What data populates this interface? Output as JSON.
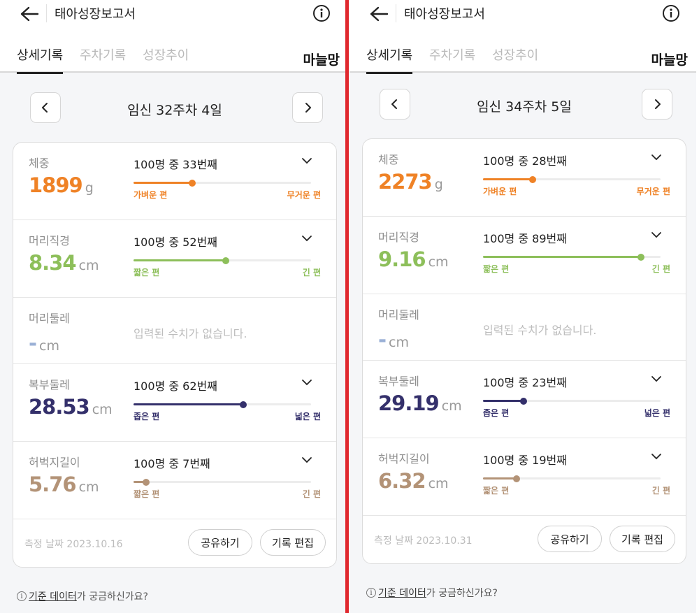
{
  "panels": [
    {
      "title": "태아성장보고서",
      "tabs": [
        "상세기록",
        "주차기록",
        "성장추이"
      ],
      "user_name": "마늘망",
      "week_label": "임신 32주차 4일",
      "rows": [
        {
          "label": "체중",
          "value": "1899",
          "unit": "g",
          "rank": "100명 중 33번째",
          "percentile": 33,
          "low_label": "가벼운 편",
          "high_label": "무거운 편",
          "color": "#ef8226"
        },
        {
          "label": "머리직경",
          "value": "8.34",
          "unit": "cm",
          "rank": "100명 중 52번째",
          "percentile": 52,
          "low_label": "짧은 편",
          "high_label": "긴 편",
          "color": "#8dbf5a"
        },
        {
          "label": "머리둘레",
          "value": "-",
          "unit": "cm",
          "empty_text": "입력된 수치가 없습니다."
        },
        {
          "label": "복부둘레",
          "value": "28.53",
          "unit": "cm",
          "rank": "100명 중 62번째",
          "percentile": 62,
          "low_label": "좁은 편",
          "high_label": "넓은 편",
          "color": "#34306b"
        },
        {
          "label": "허벅지길이",
          "value": "5.76",
          "unit": "cm",
          "rank": "100명 중 7번째",
          "percentile": 7,
          "low_label": "짧은 편",
          "high_label": "긴 편",
          "color": "#b39377"
        }
      ],
      "date": "측정 날짜 2023.10.16",
      "share_label": "공유하기",
      "edit_label": "기록 편집",
      "help_link": "기준 데이터",
      "help_rest": "가 궁금하신가요?"
    },
    {
      "title": "태아성장보고서",
      "tabs": [
        "상세기록",
        "주차기록",
        "성장추이"
      ],
      "user_name": "마늘망",
      "week_label": "임신 34주차 5일",
      "rows": [
        {
          "label": "체중",
          "value": "2273",
          "unit": "g",
          "rank": "100명 중 28번째",
          "percentile": 28,
          "low_label": "가벼운 편",
          "high_label": "무거운 편",
          "color": "#ef8226"
        },
        {
          "label": "머리직경",
          "value": "9.16",
          "unit": "cm",
          "rank": "100명 중 89번째",
          "percentile": 89,
          "low_label": "짧은 편",
          "high_label": "긴 편",
          "color": "#8dbf5a"
        },
        {
          "label": "머리둘레",
          "value": "-",
          "unit": "cm",
          "empty_text": "입력된 수치가 없습니다."
        },
        {
          "label": "복부둘레",
          "value": "29.19",
          "unit": "cm",
          "rank": "100명 중 23번째",
          "percentile": 23,
          "low_label": "좁은 편",
          "high_label": "넓은 편",
          "color": "#34306b"
        },
        {
          "label": "허벅지길이",
          "value": "6.32",
          "unit": "cm",
          "rank": "100명 중 19번째",
          "percentile": 19,
          "low_label": "짧은 편",
          "high_label": "긴 편",
          "color": "#b39377"
        }
      ],
      "date": "측정 날짜 2023.10.31",
      "share_label": "공유하기",
      "edit_label": "기록 편집",
      "help_link": "기준 데이터",
      "help_rest": "가 궁금하신가요?"
    }
  ],
  "colors": {
    "divider": "#e0282e",
    "orange": "#ef8226",
    "green": "#8dbf5a",
    "navy": "#34306b",
    "tan": "#b39377"
  },
  "icons": {
    "back": "arrow-left-icon",
    "info": "info-circle-icon",
    "prev": "chevron-left-icon",
    "next": "chevron-right-icon",
    "expand": "chevron-down-icon",
    "help": "info-circle-icon"
  }
}
